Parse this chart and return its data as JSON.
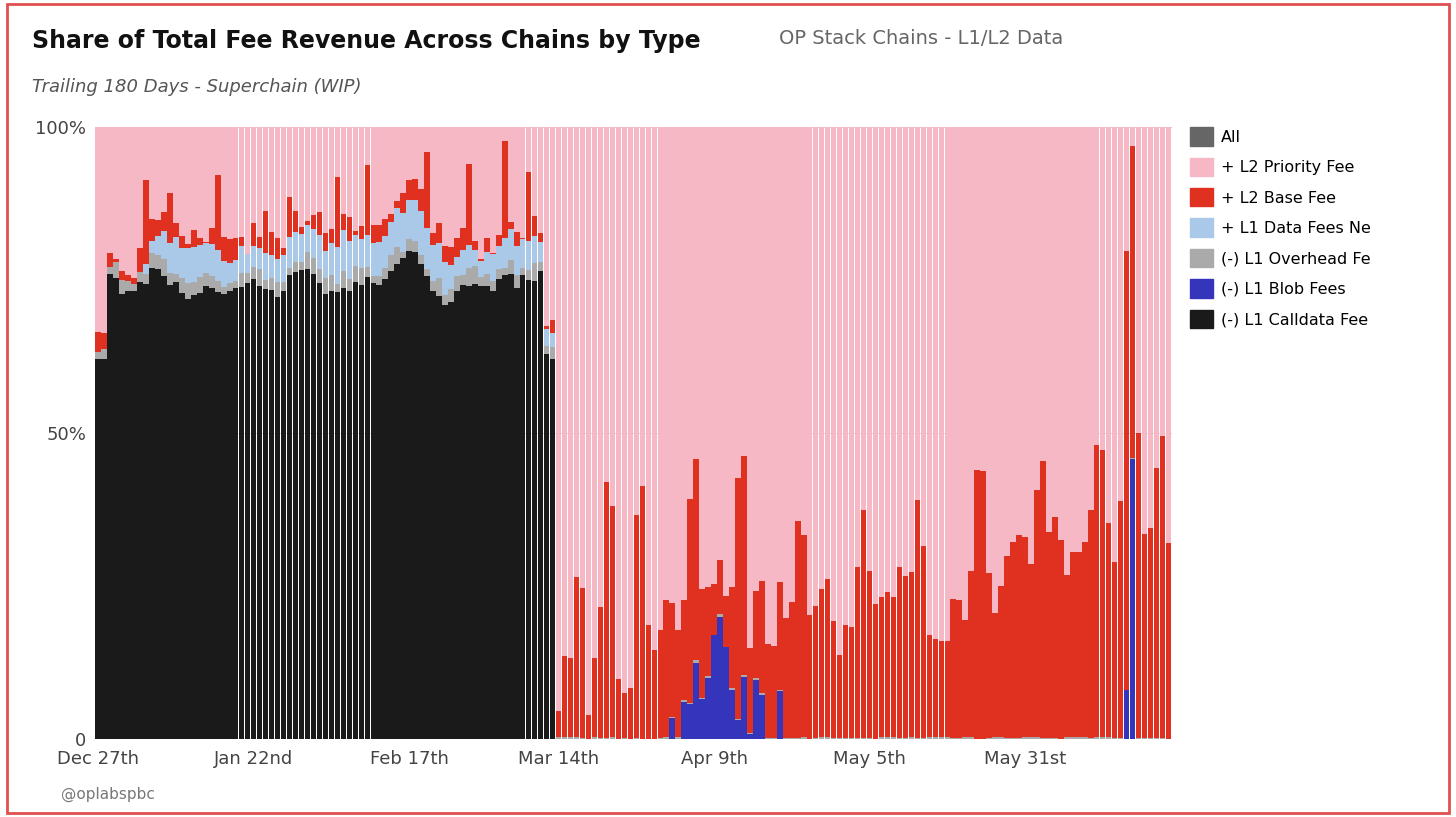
{
  "title_left": "Share of Total Fee Revenue Across Chains by Type",
  "title_right": "OP Stack Chains - L1/L2 Data",
  "subtitle": "Trailing 180 Days - Superchain (WIP)",
  "xtick_labels": [
    "Dec 27th",
    "Jan 22nd",
    "Feb 17th",
    "Mar 14th",
    "Apr 9th",
    "May 5th",
    "May 31st"
  ],
  "n_bars": 180,
  "phase_change_day": 77,
  "background_color": "#ffffff",
  "border_color": "#e05050",
  "legend_items": [
    {
      "label": "All",
      "color": "#666666"
    },
    {
      "label": "+ L2 Priority Fee",
      "color": "#f5b8c4"
    },
    {
      "label": "+ L2 Base Fee",
      "color": "#e03020"
    },
    {
      "label": "+ L1 Data Fees Ne",
      "color": "#aac8e8"
    },
    {
      "label": "(-) L1 Overhead Fe",
      "color": "#aaaaaa"
    },
    {
      "label": "(-) L1 Blob Fees",
      "color": "#3535bb"
    },
    {
      "label": "(-) L1 Calldata Fee",
      "color": "#1a1a1a"
    }
  ],
  "colors": {
    "l2_priority": "#f5b8c4",
    "l2_base": "#e03020",
    "l1_data": "#aac8e8",
    "l1_overhead": "#aaaaaa",
    "l1_blob": "#3535bb",
    "l1_calldata": "#1a1a1a"
  },
  "footer_text": "@oplabspbc",
  "seed": 42
}
